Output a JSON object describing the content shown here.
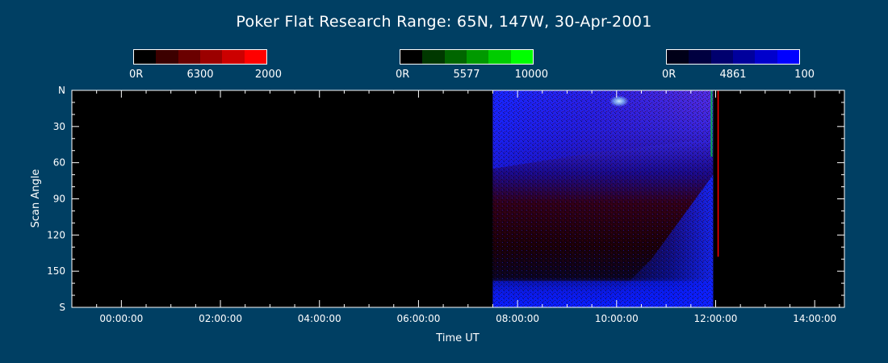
{
  "title": "Poker Flat Research Range: 65N, 147W, 30-Apr-2001",
  "colorbars": [
    {
      "name": "6300",
      "min_label": "0R",
      "mid_label": "6300",
      "max_label": "2000",
      "colors": [
        "#000000",
        "#3c0000",
        "#6a0000",
        "#9b0000",
        "#cc0000",
        "#ff0000"
      ]
    },
    {
      "name": "5577",
      "min_label": "0R",
      "mid_label": "5577",
      "max_label": "10000",
      "colors": [
        "#000000",
        "#003800",
        "#006600",
        "#009900",
        "#00cc00",
        "#00ff00"
      ]
    },
    {
      "name": "4861",
      "min_label": "0R",
      "mid_label": "4861",
      "max_label": "100",
      "colors": [
        "#000018",
        "#000040",
        "#00006e",
        "#00009c",
        "#0000cc",
        "#0000ff"
      ]
    }
  ],
  "chart_data": {
    "type": "heatmap",
    "title": "Poker Flat Research Range: 65N, 147W, 30-Apr-2001",
    "xlabel": "Time UT",
    "ylabel": "Scan Angle",
    "x_ticks": [
      "00:00:00",
      "02:00:00",
      "04:00:00",
      "06:00:00",
      "08:00:00",
      "10:00:00",
      "12:00:00",
      "14:00:00"
    ],
    "x_tick_hours": [
      0,
      2,
      4,
      6,
      8,
      10,
      12,
      14
    ],
    "xlim_hours": [
      -1,
      14.6
    ],
    "y_ticks": [
      "N",
      "30",
      "60",
      "90",
      "120",
      "150",
      "S"
    ],
    "y_tick_values": [
      0,
      30,
      60,
      90,
      120,
      150,
      180
    ],
    "ylim": [
      0,
      180
    ],
    "data_window_hours": [
      7.5,
      11.95
    ],
    "red_line_hour": 12.05,
    "red_line_extent": [
      0,
      138
    ],
    "channels": {
      "red": "6300",
      "green": "5577",
      "blue": "4861"
    },
    "colors": {
      "background": "#000000",
      "blue": "#0000ff",
      "purple": "#7a3cff",
      "red": "#8a0000",
      "cyan": "#9fe8ff"
    }
  }
}
